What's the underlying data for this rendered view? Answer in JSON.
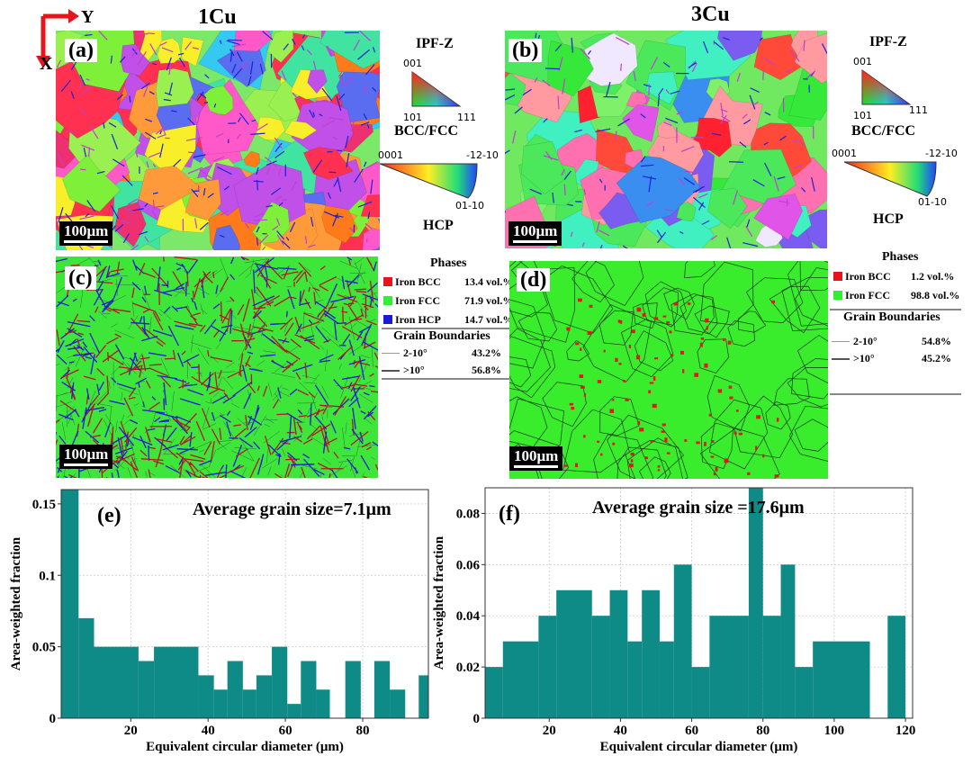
{
  "axes_glyph": {
    "y": "Y",
    "x": "X"
  },
  "titles": {
    "left": "1Cu",
    "right": "3Cu"
  },
  "panels": {
    "a": "(a)",
    "b": "(b)",
    "c": "(c)",
    "d": "(d)",
    "e": "(e)",
    "f": "(f)"
  },
  "scalebar": "100μm",
  "ipf": {
    "title": "IPF-Z",
    "cubic": {
      "top": "001",
      "left": "101",
      "right": "111",
      "label": "BCC/FCC"
    },
    "hex": {
      "left": "0001",
      "right": "-12-10",
      "bottom": "01-10",
      "label": "HCP"
    }
  },
  "legend_c": {
    "phases_title": "Phases",
    "phases": [
      {
        "name": "Iron BCC",
        "value": "13.4 vol.%",
        "color": "#e8141c"
      },
      {
        "name": "Iron FCC",
        "value": "71.9 vol.%",
        "color": "#33ee33"
      },
      {
        "name": "Iron HCP",
        "value": "14.7 vol.%",
        "color": "#1a1ad6"
      }
    ],
    "gb_title": "Grain Boundaries",
    "gb": [
      {
        "name": "2-10°",
        "value": "43.2%"
      },
      {
        "name": ">10°",
        "value": "56.8%"
      }
    ]
  },
  "legend_d": {
    "phases_title": "Phases",
    "phases": [
      {
        "name": "Iron BCC",
        "value": "1.2  vol.%",
        "color": "#e8141c"
      },
      {
        "name": "Iron FCC",
        "value": "98.8 vol.%",
        "color": "#33ee33"
      }
    ],
    "gb_title": "Grain Boundaries",
    "gb": [
      {
        "name": "2-10°",
        "value": "54.8%"
      },
      {
        "name": ">10°",
        "value": "45.2%"
      }
    ]
  },
  "chart_data": [
    {
      "type": "bar",
      "panel": "(e)",
      "annotation": "Average grain size=7.1μm",
      "xlabel": "Equivalent circular diameter (μm)",
      "ylabel": "Area-weighted fraction",
      "xlim": [
        2,
        97
      ],
      "ylim": [
        0,
        0.16
      ],
      "xticks": [
        20,
        40,
        60,
        80
      ],
      "yticks": [
        0,
        0.05,
        0.1,
        0.15
      ],
      "ytick_labels": [
        "0",
        "0.05",
        "0.1",
        "0.15"
      ],
      "bar_color": "#0e8a87",
      "bins": [
        {
          "x0": 2,
          "x1": 6.5,
          "y": 0.16
        },
        {
          "x0": 6.5,
          "x1": 10.5,
          "y": 0.07
        },
        {
          "x0": 10.5,
          "x1": 22,
          "y": 0.05
        },
        {
          "x0": 22,
          "x1": 26,
          "y": 0.04
        },
        {
          "x0": 26,
          "x1": 37.5,
          "y": 0.05
        },
        {
          "x0": 37.5,
          "x1": 41.5,
          "y": 0.03
        },
        {
          "x0": 41.5,
          "x1": 45,
          "y": 0.02
        },
        {
          "x0": 45,
          "x1": 49,
          "y": 0.04
        },
        {
          "x0": 49,
          "x1": 52.5,
          "y": 0.02
        },
        {
          "x0": 52.5,
          "x1": 56.5,
          "y": 0.03
        },
        {
          "x0": 56.5,
          "x1": 60.5,
          "y": 0.05
        },
        {
          "x0": 60.5,
          "x1": 64,
          "y": 0.01
        },
        {
          "x0": 64,
          "x1": 68,
          "y": 0.04
        },
        {
          "x0": 68,
          "x1": 71.5,
          "y": 0.02
        },
        {
          "x0": 75.5,
          "x1": 79.5,
          "y": 0.04
        },
        {
          "x0": 83,
          "x1": 87,
          "y": 0.04
        },
        {
          "x0": 87,
          "x1": 91,
          "y": 0.02
        },
        {
          "x0": 94.5,
          "x1": 97,
          "y": 0.03
        }
      ]
    },
    {
      "type": "bar",
      "panel": "(f)",
      "annotation": "Average grain size =17.6μm",
      "xlabel": "Equivalent circular diameter (μm)",
      "ylabel": "Area-weighted fraction",
      "xlim": [
        2,
        122
      ],
      "ylim": [
        0,
        0.09
      ],
      "xticks": [
        20,
        40,
        60,
        80,
        100,
        120
      ],
      "yticks": [
        0,
        0.02,
        0.04,
        0.06,
        0.08
      ],
      "ytick_labels": [
        "0",
        "0.02",
        "0.04",
        "0.06",
        "0.08"
      ],
      "bar_color": "#0e8a87",
      "bins": [
        {
          "x0": 2,
          "x1": 7,
          "y": 0.02
        },
        {
          "x0": 7,
          "x1": 17,
          "y": 0.03
        },
        {
          "x0": 17,
          "x1": 22,
          "y": 0.04
        },
        {
          "x0": 22,
          "x1": 32,
          "y": 0.05
        },
        {
          "x0": 32,
          "x1": 37,
          "y": 0.04
        },
        {
          "x0": 37,
          "x1": 42,
          "y": 0.05
        },
        {
          "x0": 42,
          "x1": 46,
          "y": 0.03
        },
        {
          "x0": 46,
          "x1": 51,
          "y": 0.05
        },
        {
          "x0": 51,
          "x1": 55,
          "y": 0.03
        },
        {
          "x0": 55,
          "x1": 60,
          "y": 0.06
        },
        {
          "x0": 60,
          "x1": 65,
          "y": 0.02
        },
        {
          "x0": 65,
          "x1": 76,
          "y": 0.04
        },
        {
          "x0": 76,
          "x1": 80,
          "y": 0.09
        },
        {
          "x0": 80,
          "x1": 85,
          "y": 0.04
        },
        {
          "x0": 85,
          "x1": 89,
          "y": 0.06
        },
        {
          "x0": 89,
          "x1": 94,
          "y": 0.02
        },
        {
          "x0": 94,
          "x1": 110,
          "y": 0.03
        },
        {
          "x0": 115,
          "x1": 120,
          "y": 0.04
        }
      ]
    }
  ]
}
